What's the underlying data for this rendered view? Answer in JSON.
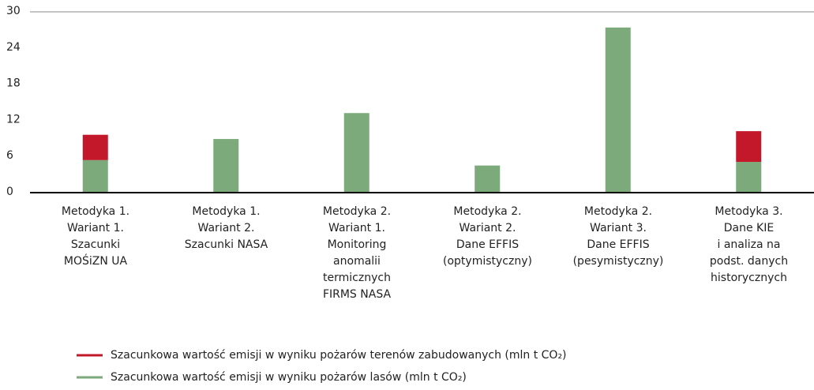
{
  "chart_data": {
    "type": "stacked_bar",
    "categories": [
      "Metodyka 1.\nWariant 1.\nSzacunki\nMOŚiZN UA",
      "Metodyka 1.\nWariant 2.\nSzacunki NASA",
      "Metodyka 2.\nWariant 1.\nMonitoring\nanomalii\ntermicznych\nFIRMS NASA",
      "Metodyka 2.\nWariant 2.\nDane EFFIS\n(optymistyczny)",
      "Metodyka 2.\nWariant 3.\nDane EFFIS\n(pesymistyczny)",
      "Metodyka 3.\nDane KIE\ni analiza na\npodst. danych\nhistorycznych"
    ],
    "series": [
      {
        "name": "Szacunkowa wartość emisji w wyniku pożarów terenów zabudowanych (mln t CO₂)",
        "color": "#c3172a",
        "values": [
          4.2,
          null,
          null,
          null,
          null,
          5.1
        ]
      },
      {
        "name": "Szacunkowa wartość emisji w wyniku pożarów lasów (mln t CO₂)",
        "color": "#7caa7a",
        "values": [
          5.4,
          8.9,
          13.2,
          4.5,
          27.4,
          5.1
        ]
      }
    ],
    "ylim": [
      0,
      30
    ],
    "yticks": [
      0,
      6,
      12,
      18,
      24,
      30
    ]
  }
}
